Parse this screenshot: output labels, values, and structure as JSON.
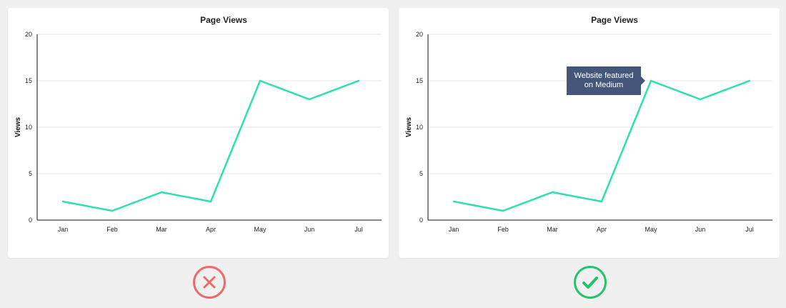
{
  "chart_data": [
    {
      "type": "line",
      "title": "Page Views",
      "xlabel": "",
      "ylabel": "Views",
      "categories": [
        "Jan",
        "Feb",
        "Mar",
        "Apr",
        "May",
        "Jun",
        "Jul"
      ],
      "series": [
        {
          "values": [
            2,
            1,
            3,
            2,
            15,
            13,
            15
          ]
        }
      ],
      "ylim": [
        0,
        20
      ],
      "yticks": [
        "0",
        "5",
        "10",
        "15",
        "20"
      ],
      "grid": true,
      "line_color": "#2ee0b0",
      "verdict": "incorrect"
    },
    {
      "type": "line",
      "title": "Page Views",
      "xlabel": "",
      "ylabel": "Views",
      "categories": [
        "Jan",
        "Feb",
        "Mar",
        "Apr",
        "May",
        "Jun",
        "Jul"
      ],
      "series": [
        {
          "values": [
            2,
            1,
            3,
            2,
            15,
            13,
            15
          ]
        }
      ],
      "ylim": [
        0,
        20
      ],
      "yticks": [
        "0",
        "5",
        "10",
        "15",
        "20"
      ],
      "grid": true,
      "line_color": "#2ee0b0",
      "annotation": {
        "text_lines": [
          "Website featured",
          "on Medium"
        ],
        "category": "May",
        "value": 15,
        "background": "#44577a"
      },
      "verdict": "correct"
    }
  ],
  "badges": {
    "bad": {
      "icon": "cross-icon",
      "color": "#ec6b6b"
    },
    "good": {
      "icon": "checkmark-icon",
      "color": "#25c36b"
    }
  }
}
